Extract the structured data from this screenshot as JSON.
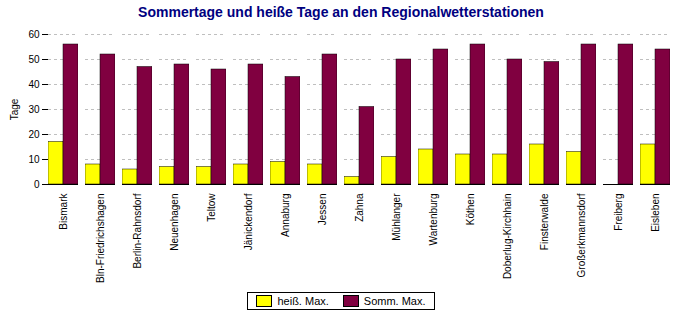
{
  "chart_data": {
    "type": "bar",
    "title": "Sommertage und heiße Tage an den Regionalwetterstationen",
    "ylabel": "Tage",
    "categories": [
      "Bismark",
      "Bln-Friedrichshagen",
      "Berlin-Rahnsdorf",
      "Neuenhagen",
      "Teltow",
      "Jänickendorf",
      "Annaburg",
      "Jessen",
      "Zahna",
      "Mühlanger",
      "Wartenburg",
      "Köthen",
      "Doberlug-Kirchhain",
      "Finsterwalde",
      "Großerkmannsdorf",
      "Freiberg",
      "Eisleben"
    ],
    "series": [
      {
        "name": "heiß. Max.",
        "color": "#FFFF00",
        "values": [
          17,
          8,
          6,
          7,
          7,
          8,
          9,
          8,
          3,
          11,
          14,
          12,
          12,
          16,
          13,
          0,
          16
        ]
      },
      {
        "name": "Somm. Max.",
        "color": "#800040",
        "values": [
          56,
          52,
          47,
          48,
          46,
          48,
          43,
          52,
          31,
          50,
          54,
          56,
          50,
          49,
          56,
          56,
          54
        ]
      }
    ],
    "ylim": [
      0,
      60
    ],
    "yticks": [
      0,
      10,
      20,
      30,
      40,
      50,
      60
    ],
    "grid": true,
    "legend": "bottom"
  }
}
